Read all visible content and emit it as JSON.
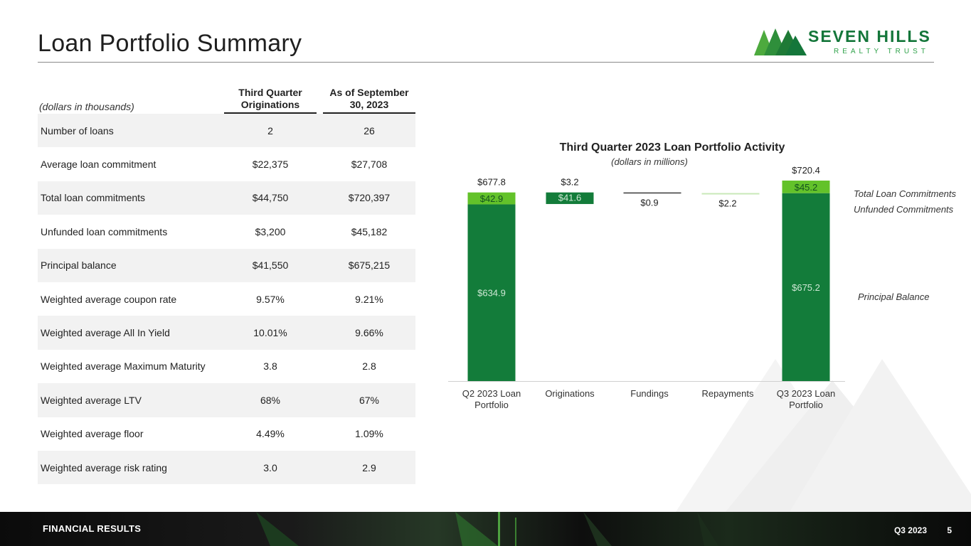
{
  "page": {
    "title": "Loan Portfolio Summary",
    "logo": {
      "name": "SEVEN HILLS",
      "subtitle": "REALTY TRUST"
    }
  },
  "table": {
    "units": "(dollars in thousands)",
    "col1": "Third Quarter Originations",
    "col2": "As of September 30, 2023",
    "rows": [
      {
        "label": "Number of loans",
        "q3": "2",
        "sep30": "26"
      },
      {
        "label": "Average loan commitment",
        "q3": "$22,375",
        "sep30": "$27,708"
      },
      {
        "label": "Total loan commitments",
        "q3": "$44,750",
        "sep30": "$720,397"
      },
      {
        "label": "Unfunded loan commitments",
        "q3": "$3,200",
        "sep30": "$45,182"
      },
      {
        "label": "Principal balance",
        "q3": "$41,550",
        "sep30": "$675,215"
      },
      {
        "label": "Weighted average coupon rate",
        "q3": "9.57%",
        "sep30": "9.21%"
      },
      {
        "label": "Weighted average All In Yield",
        "q3": "10.01%",
        "sep30": "9.66%"
      },
      {
        "label": "Weighted average Maximum Maturity",
        "q3": "3.8",
        "sep30": "2.8"
      },
      {
        "label": "Weighted average LTV",
        "q3": "68%",
        "sep30": "67%"
      },
      {
        "label": "Weighted average floor",
        "q3": "4.49%",
        "sep30": "1.09%"
      },
      {
        "label": "Weighted average risk rating",
        "q3": "3.0",
        "sep30": "2.9"
      }
    ]
  },
  "chart_data": {
    "type": "bar",
    "subtype": "waterfall",
    "title": "Third Quarter 2023 Loan Portfolio Activity",
    "subtitle": "(dollars in millions)",
    "categories": [
      "Q2 2023 Loan Portfolio",
      "Originations",
      "Fundings",
      "Repayments",
      "Q3 2023 Loan Portfolio"
    ],
    "ylim": [
      0,
      720.4
    ],
    "bars": [
      {
        "category": "Q2 2023 Loan Portfolio",
        "kind": "total",
        "principal": 634.9,
        "unfunded": 42.9,
        "total": 677.8,
        "labels": {
          "principal": "$634.9",
          "unfunded": "$42.9",
          "total": "$677.8"
        }
      },
      {
        "category": "Originations",
        "kind": "delta",
        "base": 636.2,
        "principal": 41.6,
        "unfunded": 3.2,
        "labels": {
          "principal": "$41.6",
          "unfunded": "$3.2"
        }
      },
      {
        "category": "Fundings",
        "kind": "delta",
        "base": 676.9,
        "value": 0.9,
        "labels": {
          "value": "$0.9"
        }
      },
      {
        "category": "Repayments",
        "kind": "delta",
        "base": 675.6,
        "value": -2.2,
        "labels": {
          "value": "$2.2"
        }
      },
      {
        "category": "Q3 2023 Loan Portfolio",
        "kind": "total",
        "principal": 675.2,
        "unfunded": 45.2,
        "total": 720.4,
        "labels": {
          "principal": "$675.2",
          "unfunded": "$45.2",
          "total": "$720.4"
        }
      }
    ],
    "legend": {
      "total": "Total Loan Commitments",
      "unfunded": "Unfunded Commitments",
      "principal": "Principal Balance"
    },
    "colors": {
      "principal": "#137c3a",
      "unfunded": "#63c22a",
      "fundings": "#3a3a3a",
      "repayments": "#c8e8b8"
    }
  },
  "footer": {
    "section": "FINANCIAL RESULTS",
    "period": "Q3 2023",
    "page_number": "5"
  }
}
